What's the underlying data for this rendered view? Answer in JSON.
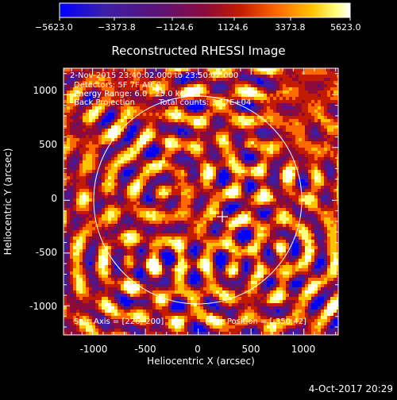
{
  "colorbar": {
    "tick_labels": [
      "−5623.0",
      "−3373.8",
      "−1124.6",
      "1124.6",
      "3373.8",
      "5623.0"
    ],
    "colors": [
      "#0000ff",
      "#3b1ea8",
      "#5a137a",
      "#8c0a3c",
      "#c21b00",
      "#ff6a00",
      "#ffc400",
      "#ffff80",
      "#ffffff"
    ]
  },
  "title": "Reconstructed RHESSI Image",
  "info": {
    "line1": "2-Nov-2015 23:40:02.000 to 23:50:02.000",
    "line2": "Detectors: 5F 7F Att 0",
    "line3": "Energy Range: 6.0 - 25.0 keV",
    "line4_a": "Back Projection",
    "line4_b": "Total counts: 3.17E+04"
  },
  "footer_left": "Spin Axis = [226,-200]",
  "footer_right": "Flare Position = [-350,42]",
  "axes": {
    "xlabel": "Heliocentric X (arcsec)",
    "ylabel": "Heliocentric Y (arcsec)",
    "xticks": [
      "-1000",
      "-500",
      "0",
      "500",
      "1000"
    ],
    "yticks": [
      "1000",
      "500",
      "0",
      "-500",
      "-1000"
    ],
    "xlim": [
      -1275,
      1325
    ],
    "ylim": [
      -1275,
      1250
    ]
  },
  "date_stamp": "4-Oct-2017 20:29"
}
